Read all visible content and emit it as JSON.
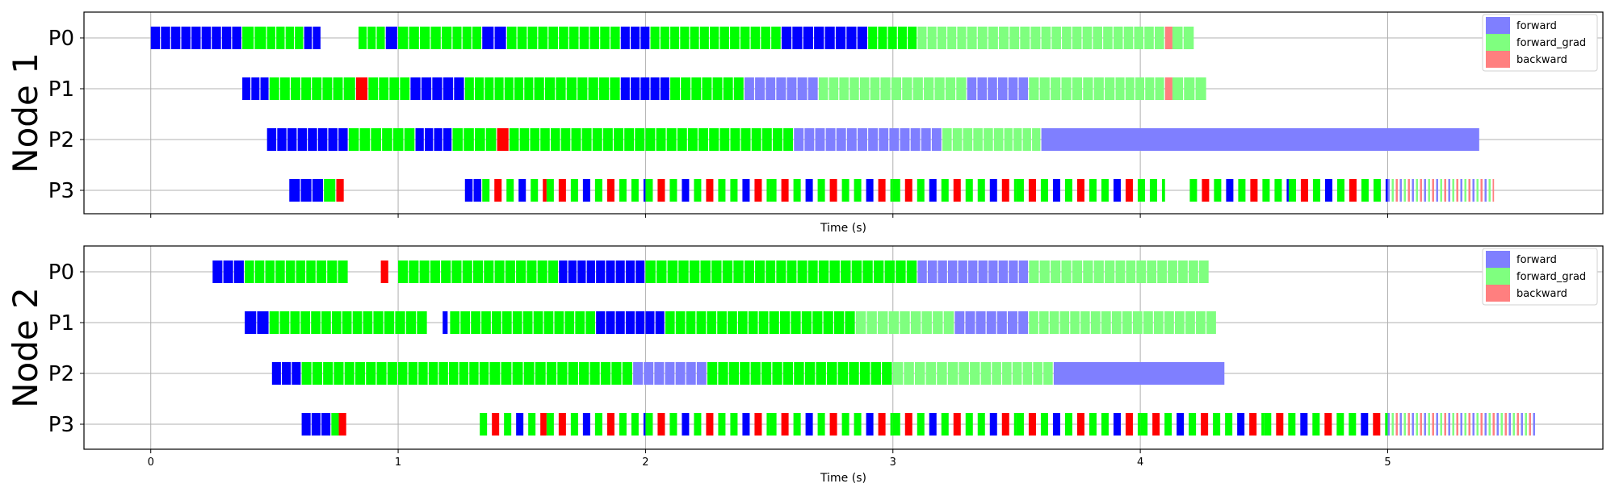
{
  "chart_data": [
    {
      "type": "timeline",
      "title": "Node 1",
      "xlabel": "Time (s)",
      "xticks": [
        "0",
        "1",
        "2",
        "3",
        "4",
        "5"
      ],
      "xlim": [
        -0.27,
        5.87
      ],
      "rows": [
        "P0",
        "P1",
        "P2",
        "P3"
      ],
      "legend": {
        "placement": "top-right",
        "entries": [
          "forward",
          "forward_grad",
          "backward"
        ]
      },
      "colors": {
        "forward": "#0000ff",
        "forward_grad": "#00ff00",
        "backward": "#ff0000",
        "forward_light": "#7f7fff",
        "forward_grad_light": "#7fff7f",
        "backward_light": "#ff7f7f"
      },
      "grid": true,
      "show_xticklabels": false,
      "segments": {
        "P0": [
          [
            0.0,
            0.37,
            "forward"
          ],
          [
            0.37,
            0.47,
            "forward_grad"
          ],
          [
            0.47,
            0.62,
            "forward_grad"
          ],
          [
            0.62,
            0.69,
            "forward"
          ],
          [
            0.84,
            0.95,
            "forward_grad"
          ],
          [
            0.95,
            1.0,
            "forward"
          ],
          [
            1.0,
            1.22,
            "forward_grad"
          ],
          [
            1.22,
            1.34,
            "forward_grad"
          ],
          [
            1.34,
            1.44,
            "forward"
          ],
          [
            1.44,
            1.65,
            "forward_grad"
          ],
          [
            1.65,
            1.9,
            "forward_grad"
          ],
          [
            1.9,
            2.02,
            "forward"
          ],
          [
            2.02,
            2.3,
            "forward_grad"
          ],
          [
            2.3,
            2.55,
            "forward_grad"
          ],
          [
            2.55,
            2.9,
            "forward"
          ],
          [
            2.9,
            3.1,
            "forward_grad"
          ],
          [
            3.1,
            3.3,
            "forward_grad_light"
          ],
          [
            3.3,
            3.6,
            "forward_grad_light"
          ],
          [
            3.6,
            3.85,
            "forward_grad_light"
          ],
          [
            3.85,
            4.1,
            "forward_grad_light"
          ],
          [
            4.1,
            4.13,
            "backward_light"
          ],
          [
            4.13,
            4.22,
            "forward_grad_light"
          ]
        ],
        "P1": [
          [
            0.37,
            0.48,
            "forward"
          ],
          [
            0.48,
            0.78,
            "forward_grad"
          ],
          [
            0.78,
            0.83,
            "forward_grad"
          ],
          [
            0.83,
            0.88,
            "backward"
          ],
          [
            0.88,
            1.05,
            "forward_grad"
          ],
          [
            1.05,
            1.27,
            "forward"
          ],
          [
            1.27,
            1.55,
            "forward_grad"
          ],
          [
            1.55,
            1.9,
            "forward_grad"
          ],
          [
            1.9,
            2.1,
            "forward"
          ],
          [
            2.1,
            2.4,
            "forward_grad"
          ],
          [
            2.4,
            2.7,
            "forward_light"
          ],
          [
            2.7,
            2.95,
            "forward_grad_light"
          ],
          [
            2.95,
            3.3,
            "forward_grad_light"
          ],
          [
            3.3,
            3.55,
            "forward_light"
          ],
          [
            3.55,
            3.9,
            "forward_grad_light"
          ],
          [
            3.9,
            4.1,
            "forward_grad_light"
          ],
          [
            4.1,
            4.13,
            "backward_light"
          ],
          [
            4.13,
            4.27,
            "forward_grad_light"
          ]
        ],
        "P2": [
          [
            0.47,
            0.8,
            "forward"
          ],
          [
            0.8,
            1.07,
            "forward_grad"
          ],
          [
            1.07,
            1.22,
            "forward"
          ],
          [
            1.22,
            1.4,
            "forward_grad"
          ],
          [
            1.4,
            1.45,
            "backward"
          ],
          [
            1.45,
            1.7,
            "forward_grad"
          ],
          [
            1.7,
            2.0,
            "forward_grad"
          ],
          [
            2.0,
            2.3,
            "forward_grad"
          ],
          [
            2.3,
            2.6,
            "forward_grad"
          ],
          [
            2.6,
            2.9,
            "forward_light"
          ],
          [
            2.9,
            3.2,
            "forward_light"
          ],
          [
            3.2,
            3.45,
            "forward_grad_light"
          ],
          [
            3.45,
            3.6,
            "forward_grad_light"
          ],
          [
            3.6,
            5.37,
            "forward_light"
          ]
        ],
        "P3": [
          [
            0.56,
            0.7,
            "forward"
          ],
          [
            0.7,
            0.75,
            "forward_grad"
          ],
          [
            0.75,
            0.78,
            "backward"
          ],
          [
            1.27,
            1.34,
            "forward"
          ],
          [
            1.34,
            1.6,
            "forward_grad"
          ],
          [
            1.6,
            2.0,
            "forward_grad"
          ],
          [
            2.0,
            2.5,
            "forward_grad"
          ],
          [
            2.5,
            3.0,
            "forward_grad"
          ],
          [
            3.0,
            3.5,
            "forward_grad"
          ],
          [
            3.5,
            4.1,
            "forward_grad"
          ],
          [
            4.2,
            4.6,
            "forward_grad"
          ],
          [
            4.6,
            5.0,
            "forward_grad"
          ],
          [
            5.0,
            5.43,
            "forward_grad_light"
          ]
        ]
      }
    },
    {
      "type": "timeline",
      "title": "Node 2",
      "xlabel": "Time (s)",
      "xticks": [
        "0",
        "1",
        "2",
        "3",
        "4",
        "5"
      ],
      "xlim": [
        -0.27,
        5.87
      ],
      "rows": [
        "P0",
        "P1",
        "P2",
        "P3"
      ],
      "legend": {
        "placement": "top-right",
        "entries": [
          "forward",
          "forward_grad",
          "backward"
        ]
      },
      "colors": {
        "forward": "#0000ff",
        "forward_grad": "#00ff00",
        "backward": "#ff0000",
        "forward_light": "#7f7fff",
        "forward_grad_light": "#7fff7f",
        "backward_light": "#ff7f7f"
      },
      "grid": true,
      "show_xticklabels": true,
      "segments": {
        "P0": [
          [
            0.25,
            0.38,
            "forward"
          ],
          [
            0.38,
            0.67,
            "forward_grad"
          ],
          [
            0.67,
            0.8,
            "forward_grad"
          ],
          [
            0.93,
            0.96,
            "backward"
          ],
          [
            1.0,
            1.65,
            "forward_grad"
          ],
          [
            1.65,
            1.8,
            "forward"
          ],
          [
            1.8,
            2.0,
            "forward"
          ],
          [
            2.0,
            2.4,
            "forward_grad"
          ],
          [
            2.4,
            2.7,
            "forward_grad"
          ],
          [
            2.7,
            3.1,
            "forward_grad"
          ],
          [
            3.1,
            3.55,
            "forward_light"
          ],
          [
            3.55,
            3.9,
            "forward_grad_light"
          ],
          [
            3.9,
            4.28,
            "forward_grad_light"
          ]
        ],
        "P1": [
          [
            0.38,
            0.48,
            "forward"
          ],
          [
            0.48,
            0.9,
            "forward_grad"
          ],
          [
            0.9,
            1.12,
            "forward_grad"
          ],
          [
            1.18,
            1.2,
            "forward"
          ],
          [
            1.21,
            1.8,
            "forward_grad"
          ],
          [
            1.8,
            2.08,
            "forward"
          ],
          [
            2.08,
            2.5,
            "forward_grad"
          ],
          [
            2.5,
            2.85,
            "forward_grad"
          ],
          [
            2.85,
            3.25,
            "forward_grad_light"
          ],
          [
            3.25,
            3.55,
            "forward_light"
          ],
          [
            3.55,
            3.8,
            "forward_grad_light"
          ],
          [
            3.8,
            4.31,
            "forward_grad_light"
          ]
        ],
        "P2": [
          [
            0.49,
            0.61,
            "forward"
          ],
          [
            0.61,
            1.0,
            "forward_grad"
          ],
          [
            1.0,
            1.37,
            "forward_grad"
          ],
          [
            1.37,
            1.6,
            "forward_grad"
          ],
          [
            1.6,
            1.95,
            "forward_grad"
          ],
          [
            1.95,
            2.25,
            "forward_light"
          ],
          [
            2.25,
            2.6,
            "forward_grad"
          ],
          [
            2.6,
            3.0,
            "forward_grad"
          ],
          [
            3.0,
            3.4,
            "forward_grad_light"
          ],
          [
            3.4,
            3.65,
            "forward_grad_light"
          ],
          [
            3.65,
            4.34,
            "forward_light"
          ]
        ],
        "P3": [
          [
            0.61,
            0.73,
            "forward"
          ],
          [
            0.73,
            0.76,
            "forward_grad"
          ],
          [
            0.76,
            0.79,
            "backward"
          ],
          [
            1.33,
            1.6,
            "forward_grad"
          ],
          [
            1.6,
            2.0,
            "forward_grad"
          ],
          [
            2.0,
            2.5,
            "forward_grad"
          ],
          [
            2.5,
            3.0,
            "forward_grad"
          ],
          [
            3.0,
            3.5,
            "forward_grad"
          ],
          [
            3.5,
            4.0,
            "forward_grad"
          ],
          [
            4.0,
            4.5,
            "forward_grad"
          ],
          [
            4.5,
            5.0,
            "forward_grad"
          ],
          [
            5.0,
            5.6,
            "forward_grad_light"
          ]
        ]
      }
    }
  ]
}
